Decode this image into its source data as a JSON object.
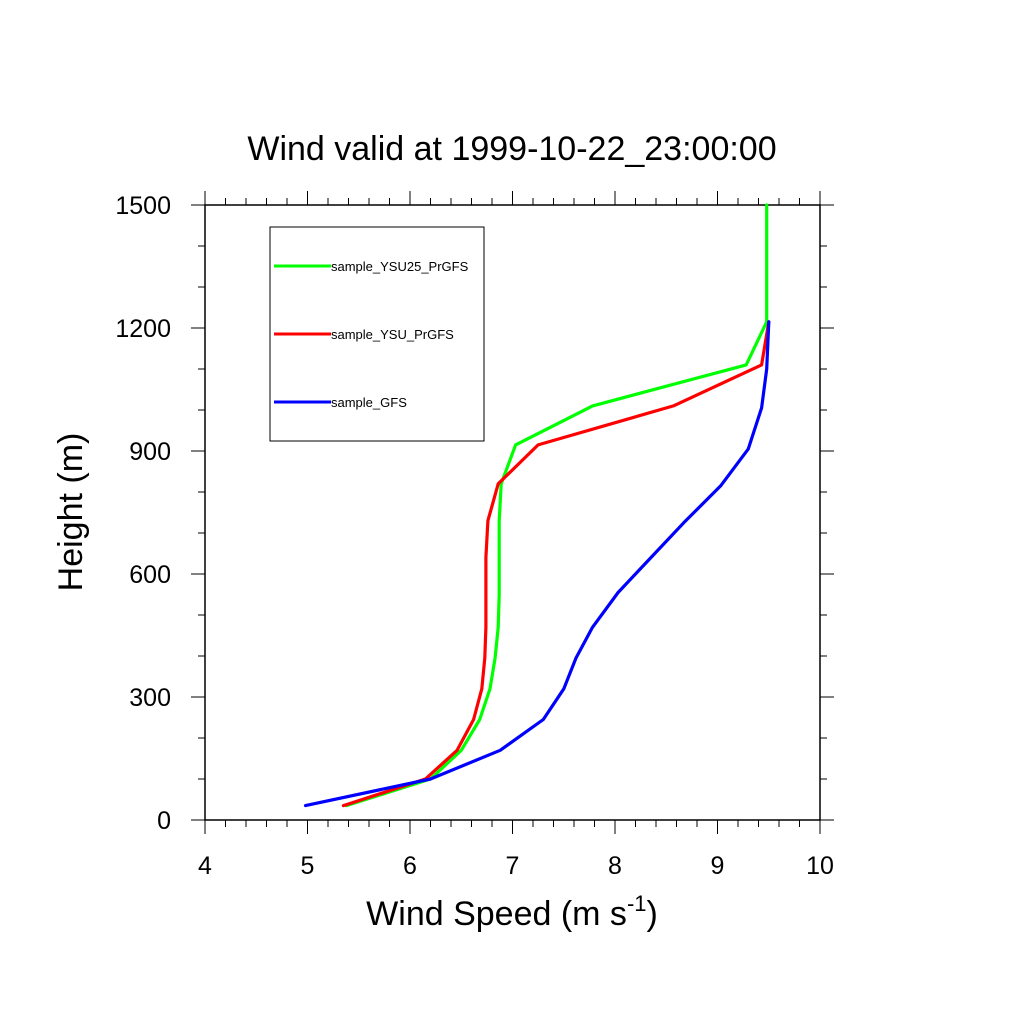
{
  "chart_data": {
    "type": "line",
    "title": "Wind valid at 1999-10-22_23:00:00",
    "xlabel": "Wind Speed (m s",
    "xlabel_sup": "-1",
    "xlabel_close": ")",
    "ylabel": "Height (m)",
    "xlim": [
      4,
      10
    ],
    "ylim": [
      0,
      1500
    ],
    "x_ticks": [
      4,
      5,
      6,
      7,
      8,
      9,
      10
    ],
    "y_ticks": [
      0,
      300,
      600,
      900,
      1200,
      1500
    ],
    "grid": false,
    "legend_position": "top-left",
    "series": [
      {
        "name": "sample_YSU25_PrGFS",
        "color": "#00ff00",
        "points": [
          [
            5.38,
            35
          ],
          [
            6.2,
            100
          ],
          [
            6.5,
            170
          ],
          [
            6.68,
            245
          ],
          [
            6.78,
            320
          ],
          [
            6.83,
            395
          ],
          [
            6.86,
            470
          ],
          [
            6.87,
            550
          ],
          [
            6.87,
            640
          ],
          [
            6.87,
            730
          ],
          [
            6.89,
            820
          ],
          [
            7.03,
            915
          ],
          [
            7.78,
            1010
          ],
          [
            9.28,
            1110
          ],
          [
            9.48,
            1215
          ],
          [
            9.48,
            1300
          ],
          [
            9.48,
            1400
          ],
          [
            9.48,
            1500
          ]
        ]
      },
      {
        "name": "sample_YSU_PrGFS",
        "color": "#ff0000",
        "points": [
          [
            5.35,
            35
          ],
          [
            6.15,
            100
          ],
          [
            6.46,
            170
          ],
          [
            6.62,
            245
          ],
          [
            6.7,
            320
          ],
          [
            6.73,
            395
          ],
          [
            6.74,
            470
          ],
          [
            6.74,
            550
          ],
          [
            6.74,
            640
          ],
          [
            6.76,
            730
          ],
          [
            6.86,
            820
          ],
          [
            7.25,
            915
          ],
          [
            8.57,
            1010
          ],
          [
            9.43,
            1110
          ],
          [
            9.5,
            1215
          ]
        ]
      },
      {
        "name": "sample_GFS",
        "color": "#0000ff",
        "points": [
          [
            4.98,
            35
          ],
          [
            6.2,
            100
          ],
          [
            6.88,
            170
          ],
          [
            7.3,
            245
          ],
          [
            7.5,
            320
          ],
          [
            7.62,
            395
          ],
          [
            7.78,
            470
          ],
          [
            8.03,
            555
          ],
          [
            8.35,
            640
          ],
          [
            8.67,
            725
          ],
          [
            9.03,
            815
          ],
          [
            9.3,
            905
          ],
          [
            9.43,
            1005
          ],
          [
            9.48,
            1100
          ],
          [
            9.5,
            1215
          ]
        ]
      }
    ]
  }
}
